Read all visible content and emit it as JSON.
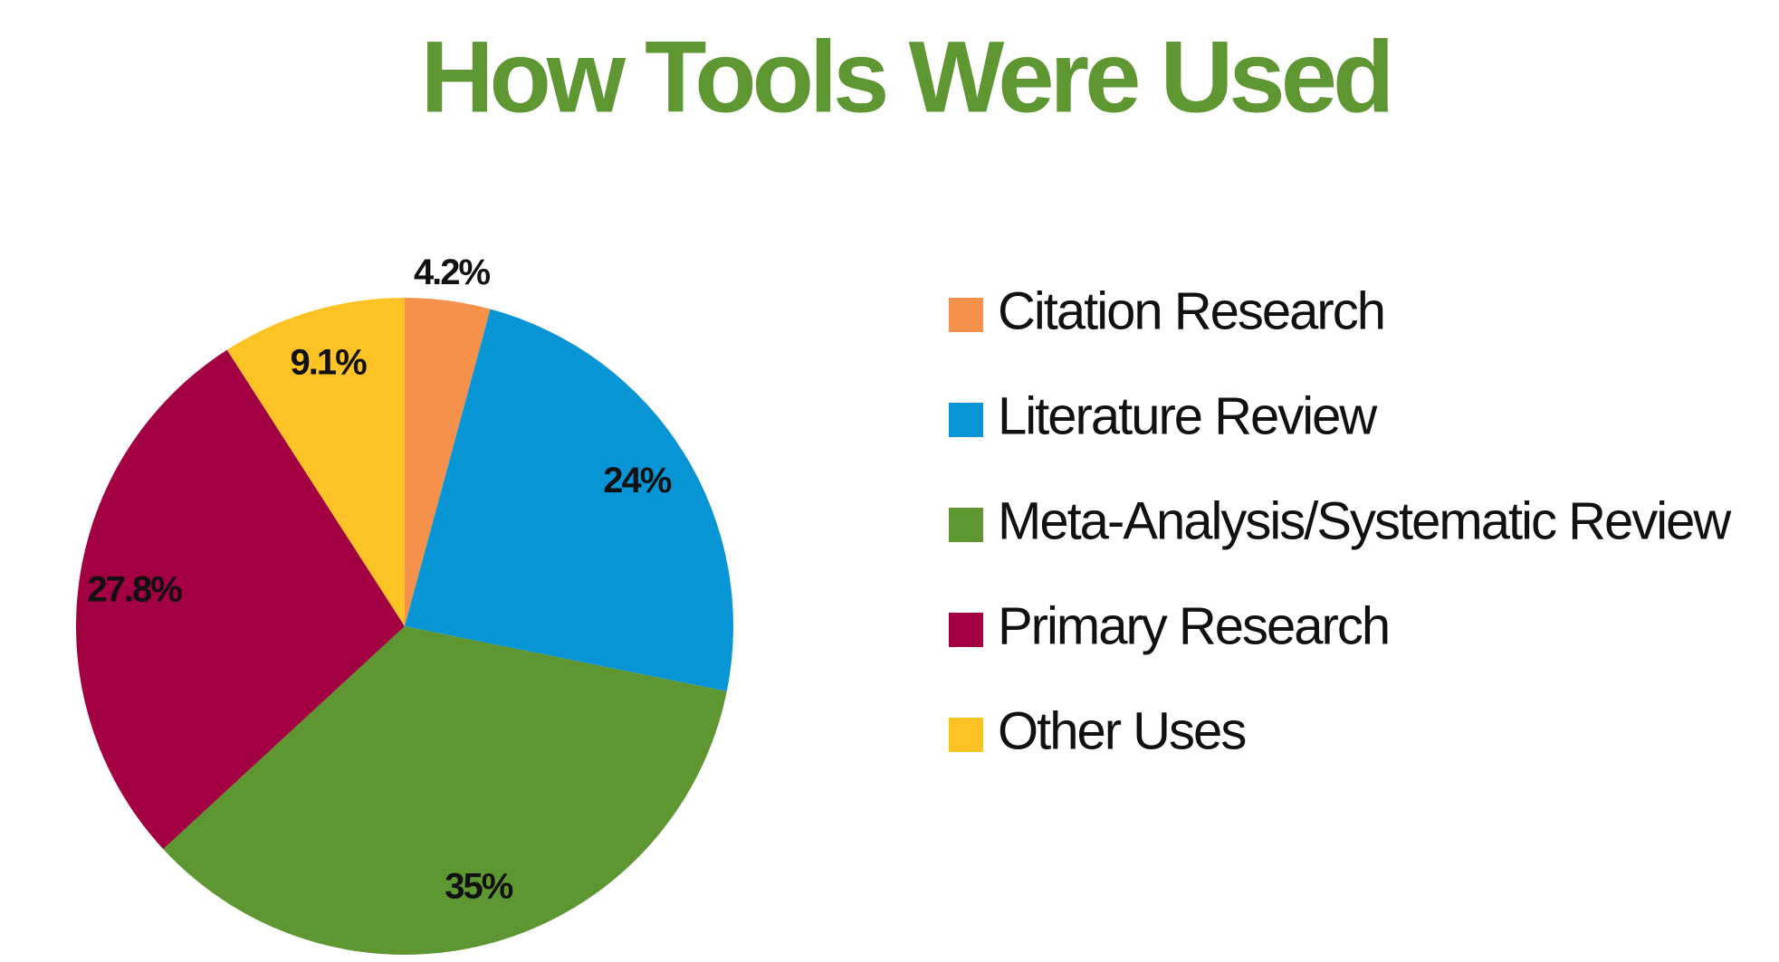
{
  "chart_data": {
    "type": "pie",
    "title": "How Tools Were Used",
    "categories": [
      "Citation Research",
      "Literature Review",
      "Meta-Analysis/Systematic Review",
      "Primary Research",
      "Other Uses"
    ],
    "values": [
      4.2,
      24,
      35,
      27.8,
      9.1
    ],
    "value_labels": [
      "4.2%",
      "24%",
      "35%",
      "27.8%",
      "9.1%"
    ],
    "colors": [
      "#f5914a",
      "#0795d6",
      "#5e9732",
      "#a30044",
      "#fdc324"
    ],
    "legend": "right"
  }
}
